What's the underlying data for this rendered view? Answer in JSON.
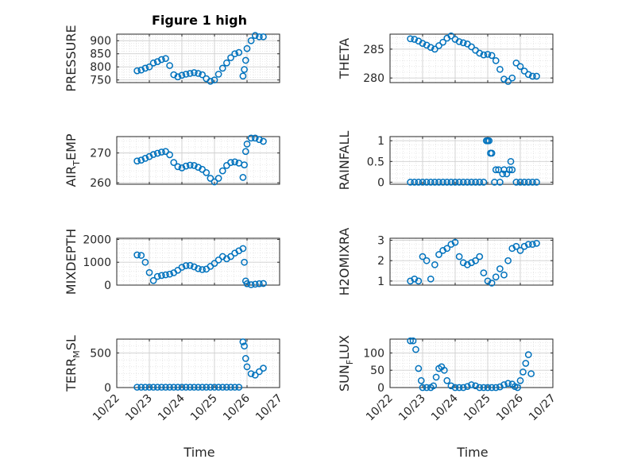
{
  "title": "Figure 1 high",
  "xlabel": "Time",
  "x_ticks": [
    "10/22",
    "10/23",
    "10/24",
    "10/25",
    "10/26",
    "10/27"
  ],
  "style": {
    "marker_color": "#0072BD",
    "axis_color": "#262626",
    "grid_color": "#d9d9d9"
  },
  "chart_data": [
    {
      "type": "scatter",
      "marker": "circle-open",
      "ylabel": "PRESSURE",
      "yticks": [
        "750",
        "800",
        "850",
        "900"
      ],
      "ylim": [
        740,
        925
      ],
      "xlim": [
        "10/22",
        "10/27"
      ],
      "x": [
        "10/22 15:00",
        "10/22 18:00",
        "10/22 21:00",
        "10/23 00:00",
        "10/23 03:00",
        "10/23 06:00",
        "10/23 09:00",
        "10/23 12:00",
        "10/23 15:00",
        "10/23 18:00",
        "10/23 21:00",
        "10/24 00:00",
        "10/24 03:00",
        "10/24 06:00",
        "10/24 09:00",
        "10/24 12:00",
        "10/24 15:00",
        "10/24 18:00",
        "10/24 21:00",
        "10/25 00:00",
        "10/25 03:00",
        "10/25 06:00",
        "10/25 09:00",
        "10/25 12:00",
        "10/25 15:00",
        "10/25 18:00",
        "10/25 21:00",
        "10/25 22:00",
        "10/25 23:00",
        "10/26 00:00",
        "10/26 03:00",
        "10/26 06:00",
        "10/26 09:00",
        "10/26 12:00"
      ],
      "y": [
        785,
        788,
        795,
        800,
        815,
        820,
        828,
        832,
        805,
        770,
        762,
        768,
        772,
        775,
        778,
        775,
        770,
        755,
        745,
        750,
        772,
        795,
        815,
        835,
        850,
        855,
        765,
        790,
        825,
        870,
        900,
        920,
        915,
        915
      ]
    },
    {
      "type": "scatter",
      "marker": "circle-open",
      "ylabel": "THETA",
      "yticks": [
        "280",
        "285"
      ],
      "ylim": [
        279.2,
        287.6
      ],
      "xlim": [
        "10/22",
        "10/27"
      ],
      "x": [
        "10/22 15:00",
        "10/22 18:00",
        "10/22 21:00",
        "10/23 00:00",
        "10/23 03:00",
        "10/23 06:00",
        "10/23 09:00",
        "10/23 12:00",
        "10/23 15:00",
        "10/23 18:00",
        "10/23 21:00",
        "10/24 00:00",
        "10/24 03:00",
        "10/24 06:00",
        "10/24 09:00",
        "10/24 12:00",
        "10/24 15:00",
        "10/24 18:00",
        "10/24 21:00",
        "10/25 00:00",
        "10/25 03:00",
        "10/25 06:00",
        "10/25 09:00",
        "10/25 12:00",
        "10/25 15:00",
        "10/25 18:00",
        "10/25 21:00",
        "10/26 00:00",
        "10/26 03:00",
        "10/26 06:00",
        "10/26 09:00",
        "10/26 12:00"
      ],
      "y": [
        286.8,
        286.7,
        286.4,
        286.0,
        285.7,
        285.3,
        285.0,
        285.6,
        286.2,
        286.9,
        287.3,
        286.7,
        286.3,
        286.1,
        285.9,
        285.4,
        284.8,
        284.3,
        284.0,
        284.1,
        283.9,
        283.0,
        281.5,
        279.8,
        279.4,
        280.0,
        282.6,
        282.0,
        281.2,
        280.6,
        280.3,
        280.3
      ]
    },
    {
      "type": "scatter",
      "marker": "circle-open",
      "ylabel": "AIR_TEMP",
      "ylabel_main": "AIR",
      "ylabel_sub": "T",
      "ylabel_rest": "EMP",
      "yticks": [
        "260",
        "270"
      ],
      "ylim": [
        259.5,
        275.5
      ],
      "xlim": [
        "10/22",
        "10/27"
      ],
      "x": [
        "10/22 15:00",
        "10/22 18:00",
        "10/22 21:00",
        "10/23 00:00",
        "10/23 03:00",
        "10/23 06:00",
        "10/23 09:00",
        "10/23 12:00",
        "10/23 15:00",
        "10/23 18:00",
        "10/23 21:00",
        "10/24 00:00",
        "10/24 03:00",
        "10/24 06:00",
        "10/24 09:00",
        "10/24 12:00",
        "10/24 15:00",
        "10/24 18:00",
        "10/24 21:00",
        "10/25 00:00",
        "10/25 03:00",
        "10/25 06:00",
        "10/25 09:00",
        "10/25 12:00",
        "10/25 15:00",
        "10/25 18:00",
        "10/25 21:00",
        "10/25 22:00",
        "10/25 23:00",
        "10/26 00:00",
        "10/26 03:00",
        "10/26 06:00",
        "10/26 09:00",
        "10/26 12:00"
      ],
      "y": [
        267.3,
        267.6,
        268.2,
        268.8,
        269.5,
        269.9,
        270.3,
        270.5,
        269.4,
        266.8,
        265.4,
        265.0,
        265.6,
        265.9,
        265.8,
        265.2,
        264.5,
        263.4,
        261.5,
        260.3,
        261.5,
        264.0,
        265.8,
        266.8,
        267.0,
        266.6,
        261.8,
        266.0,
        270.5,
        273.0,
        275.0,
        275.0,
        274.5,
        273.9
      ]
    },
    {
      "type": "scatter",
      "marker": "circle-open",
      "ylabel": "RAINFALL",
      "yticks": [
        "0",
        "0.5",
        "1"
      ],
      "ylim": [
        -0.05,
        1.1
      ],
      "xlim": [
        "10/22",
        "10/27"
      ],
      "x": [
        "10/22 15:00",
        "10/22 18:00",
        "10/22 21:00",
        "10/23 00:00",
        "10/23 03:00",
        "10/23 06:00",
        "10/23 09:00",
        "10/23 12:00",
        "10/23 15:00",
        "10/23 18:00",
        "10/23 21:00",
        "10/24 00:00",
        "10/24 03:00",
        "10/24 06:00",
        "10/24 09:00",
        "10/24 12:00",
        "10/24 15:00",
        "10/24 18:00",
        "10/24 21:00",
        "10/24 23:00",
        "10/25 00:00",
        "10/25 01:00",
        "10/25 02:00",
        "10/25 03:00",
        "10/25 05:00",
        "10/25 06:00",
        "10/25 08:00",
        "10/25 09:00",
        "10/25 11:00",
        "10/25 12:00",
        "10/25 14:00",
        "10/25 16:00",
        "10/25 17:00",
        "10/25 18:00",
        "10/25 21:00",
        "10/26 00:00",
        "10/26 03:00",
        "10/26 06:00",
        "10/26 09:00",
        "10/26 12:00"
      ],
      "y": [
        0,
        0,
        0,
        0,
        0,
        0,
        0,
        0,
        0,
        0,
        0,
        0,
        0,
        0,
        0,
        0,
        0,
        0,
        0,
        1.0,
        1.0,
        1.0,
        0.7,
        0.7,
        0,
        0.3,
        0.3,
        0,
        0.2,
        0.3,
        0.2,
        0.3,
        0.5,
        0.3,
        0,
        0,
        0,
        0,
        0,
        0
      ]
    },
    {
      "type": "scatter",
      "marker": "circle-open",
      "ylabel": "MIXDEPTH",
      "yticks": [
        "0",
        "1000",
        "2000"
      ],
      "ylim": [
        0,
        2050
      ],
      "xlim": [
        "10/22",
        "10/27"
      ],
      "x": [
        "10/22 15:00",
        "10/22 18:00",
        "10/22 21:00",
        "10/23 00:00",
        "10/23 03:00",
        "10/23 06:00",
        "10/23 09:00",
        "10/23 12:00",
        "10/23 15:00",
        "10/23 18:00",
        "10/23 21:00",
        "10/24 00:00",
        "10/24 03:00",
        "10/24 06:00",
        "10/24 09:00",
        "10/24 12:00",
        "10/24 15:00",
        "10/24 18:00",
        "10/24 21:00",
        "10/25 00:00",
        "10/25 03:00",
        "10/25 06:00",
        "10/25 09:00",
        "10/25 12:00",
        "10/25 15:00",
        "10/25 18:00",
        "10/25 21:00",
        "10/25 22:00",
        "10/25 23:00",
        "10/26 00:00",
        "10/26 03:00",
        "10/26 06:00",
        "10/26 09:00",
        "10/26 12:00"
      ],
      "y": [
        1320,
        1300,
        1000,
        550,
        200,
        380,
        420,
        450,
        480,
        540,
        650,
        780,
        850,
        860,
        800,
        720,
        680,
        700,
        820,
        950,
        1100,
        1250,
        1150,
        1250,
        1400,
        1500,
        1600,
        1000,
        180,
        60,
        20,
        40,
        60,
        70
      ]
    },
    {
      "type": "scatter",
      "marker": "circle-open",
      "ylabel": "H2OMIXRA",
      "yticks": [
        "1",
        "2",
        "3"
      ],
      "ylim": [
        0.8,
        3.1
      ],
      "xlim": [
        "10/22",
        "10/27"
      ],
      "x": [
        "10/22 15:00",
        "10/22 18:00",
        "10/22 21:00",
        "10/23 00:00",
        "10/23 03:00",
        "10/23 06:00",
        "10/23 09:00",
        "10/23 12:00",
        "10/23 15:00",
        "10/23 18:00",
        "10/23 21:00",
        "10/24 00:00",
        "10/24 03:00",
        "10/24 06:00",
        "10/24 09:00",
        "10/24 12:00",
        "10/24 15:00",
        "10/24 18:00",
        "10/24 21:00",
        "10/25 00:00",
        "10/25 03:00",
        "10/25 06:00",
        "10/25 09:00",
        "10/25 12:00",
        "10/25 15:00",
        "10/25 18:00",
        "10/25 21:00",
        "10/26 00:00",
        "10/26 03:00",
        "10/26 06:00",
        "10/26 09:00",
        "10/26 12:00"
      ],
      "y": [
        1.0,
        1.1,
        1.0,
        2.2,
        2.0,
        1.1,
        1.8,
        2.3,
        2.5,
        2.6,
        2.8,
        2.9,
        2.2,
        1.9,
        1.8,
        1.9,
        2.0,
        2.2,
        1.4,
        1.0,
        0.9,
        1.2,
        1.6,
        1.3,
        2.0,
        2.6,
        2.7,
        2.5,
        2.7,
        2.8,
        2.8,
        2.85
      ]
    },
    {
      "type": "scatter",
      "marker": "circle-open",
      "ylabel": "TERR_MSL",
      "ylabel_main": "TERR",
      "ylabel_sub": "M",
      "ylabel_rest": "SL",
      "yticks": [
        "0",
        "500"
      ],
      "ylim": [
        0,
        700
      ],
      "xlim": [
        "10/22",
        "10/27"
      ],
      "x": [
        "10/22 15:00",
        "10/22 18:00",
        "10/22 21:00",
        "10/23 00:00",
        "10/23 03:00",
        "10/23 06:00",
        "10/23 09:00",
        "10/23 12:00",
        "10/23 15:00",
        "10/23 18:00",
        "10/23 21:00",
        "10/24 00:00",
        "10/24 03:00",
        "10/24 06:00",
        "10/24 09:00",
        "10/24 12:00",
        "10/24 15:00",
        "10/24 18:00",
        "10/24 21:00",
        "10/25 00:00",
        "10/25 03:00",
        "10/25 06:00",
        "10/25 09:00",
        "10/25 12:00",
        "10/25 15:00",
        "10/25 18:00",
        "10/25 21:00",
        "10/25 22:00",
        "10/25 23:00",
        "10/26 00:00",
        "10/26 03:00",
        "10/26 06:00",
        "10/26 09:00",
        "10/26 12:00"
      ],
      "y": [
        5,
        5,
        5,
        5,
        5,
        5,
        5,
        5,
        5,
        5,
        5,
        5,
        5,
        5,
        5,
        5,
        5,
        5,
        5,
        5,
        5,
        5,
        5,
        5,
        5,
        5,
        660,
        600,
        420,
        300,
        200,
        180,
        230,
        280
      ]
    },
    {
      "type": "scatter",
      "marker": "circle-open",
      "ylabel": "SUN_FLUX",
      "ylabel_main": "SUN",
      "ylabel_sub": "F",
      "ylabel_rest": "LUX",
      "yticks": [
        "0",
        "50",
        "100"
      ],
      "ylim": [
        0,
        140
      ],
      "xlim": [
        "10/22",
        "10/27"
      ],
      "x": [
        "10/22 15:00",
        "10/22 17:00",
        "10/22 19:00",
        "10/22 21:00",
        "10/22 23:00",
        "10/23 00:00",
        "10/23 03:00",
        "10/23 06:00",
        "10/23 08:00",
        "10/23 10:00",
        "10/23 12:00",
        "10/23 14:00",
        "10/23 16:00",
        "10/23 18:00",
        "10/23 21:00",
        "10/24 00:00",
        "10/24 03:00",
        "10/24 06:00",
        "10/24 09:00",
        "10/24 12:00",
        "10/24 15:00",
        "10/24 18:00",
        "10/24 21:00",
        "10/25 00:00",
        "10/25 03:00",
        "10/25 06:00",
        "10/25 09:00",
        "10/25 12:00",
        "10/25 15:00",
        "10/25 18:00",
        "10/25 20:00",
        "10/25 22:00",
        "10/26 00:00",
        "10/26 02:00",
        "10/26 04:00",
        "10/26 06:00",
        "10/26 08:00"
      ],
      "y": [
        135,
        135,
        110,
        55,
        20,
        0,
        0,
        0,
        5,
        30,
        55,
        60,
        50,
        20,
        5,
        0,
        0,
        0,
        3,
        8,
        5,
        0,
        0,
        0,
        0,
        0,
        2,
        8,
        12,
        10,
        3,
        0,
        20,
        45,
        70,
        95,
        40
      ]
    }
  ]
}
